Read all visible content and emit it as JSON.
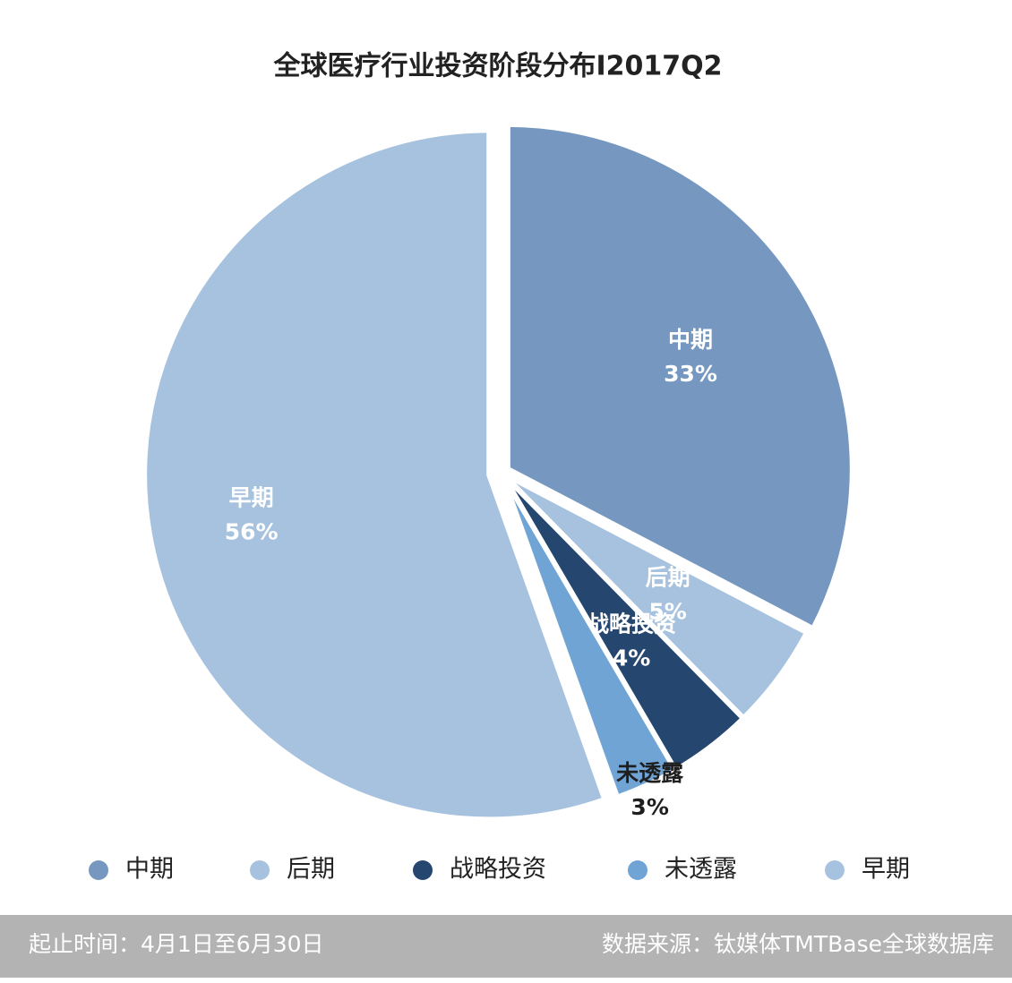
{
  "chart_data": {
    "type": "pie",
    "title": "全球医疗行业投资阶段分布I2017Q2",
    "categories": [
      "中期",
      "后期",
      "战略投资",
      "未透露",
      "早期"
    ],
    "values": [
      33,
      5,
      4,
      3,
      56
    ],
    "value_labels": [
      "33%",
      "5%",
      "4%",
      "3%",
      "56%"
    ],
    "colors": [
      "#7698c0",
      "#a6c2de",
      "#25476f",
      "#70a4d4",
      "#a6c2de"
    ],
    "legend": "bottom"
  },
  "footer": {
    "left": "起止时间：4月1日至6月30日",
    "right": "数据来源：钛媒体TMTBase全球数据库"
  }
}
